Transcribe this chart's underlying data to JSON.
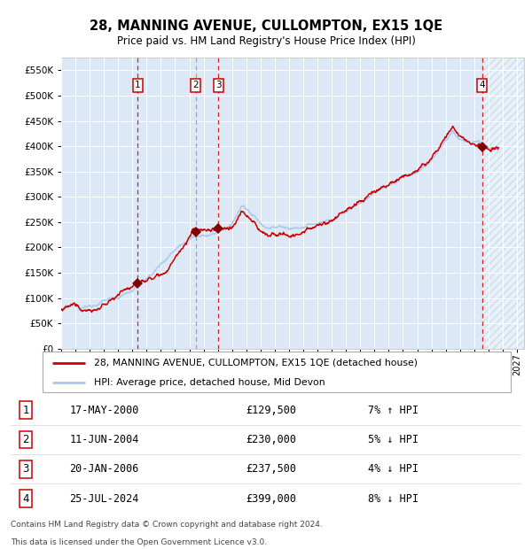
{
  "title": "28, MANNING AVENUE, CULLOMPTON, EX15 1QE",
  "subtitle": "Price paid vs. HM Land Registry's House Price Index (HPI)",
  "legend_line1": "28, MANNING AVENUE, CULLOMPTON, EX15 1QE (detached house)",
  "legend_line2": "HPI: Average price, detached house, Mid Devon",
  "footer1": "Contains HM Land Registry data © Crown copyright and database right 2024.",
  "footer2": "This data is licensed under the Open Government Licence v3.0.",
  "transactions": [
    {
      "num": 1,
      "date": "17-MAY-2000",
      "price": 129500,
      "pct": "7%",
      "dir": "↑",
      "year": 2000.37
    },
    {
      "num": 2,
      "date": "11-JUN-2004",
      "price": 230000,
      "pct": "5%",
      "dir": "↓",
      "year": 2004.44
    },
    {
      "num": 3,
      "date": "20-JAN-2006",
      "price": 237500,
      "pct": "4%",
      "dir": "↓",
      "year": 2006.05
    },
    {
      "num": 4,
      "date": "25-JUL-2024",
      "price": 399000,
      "pct": "8%",
      "dir": "↓",
      "year": 2024.56
    }
  ],
  "hpi_color": "#adc8e8",
  "price_color": "#cc0000",
  "marker_color": "#800000",
  "bg_color": "#dce8f5",
  "ylim": [
    0,
    575000
  ],
  "yticks": [
    0,
    50000,
    100000,
    150000,
    200000,
    250000,
    300000,
    350000,
    400000,
    450000,
    500000,
    550000
  ],
  "xlim_start": 1995.0,
  "xlim_end": 2027.5,
  "future_start": 2024.56
}
